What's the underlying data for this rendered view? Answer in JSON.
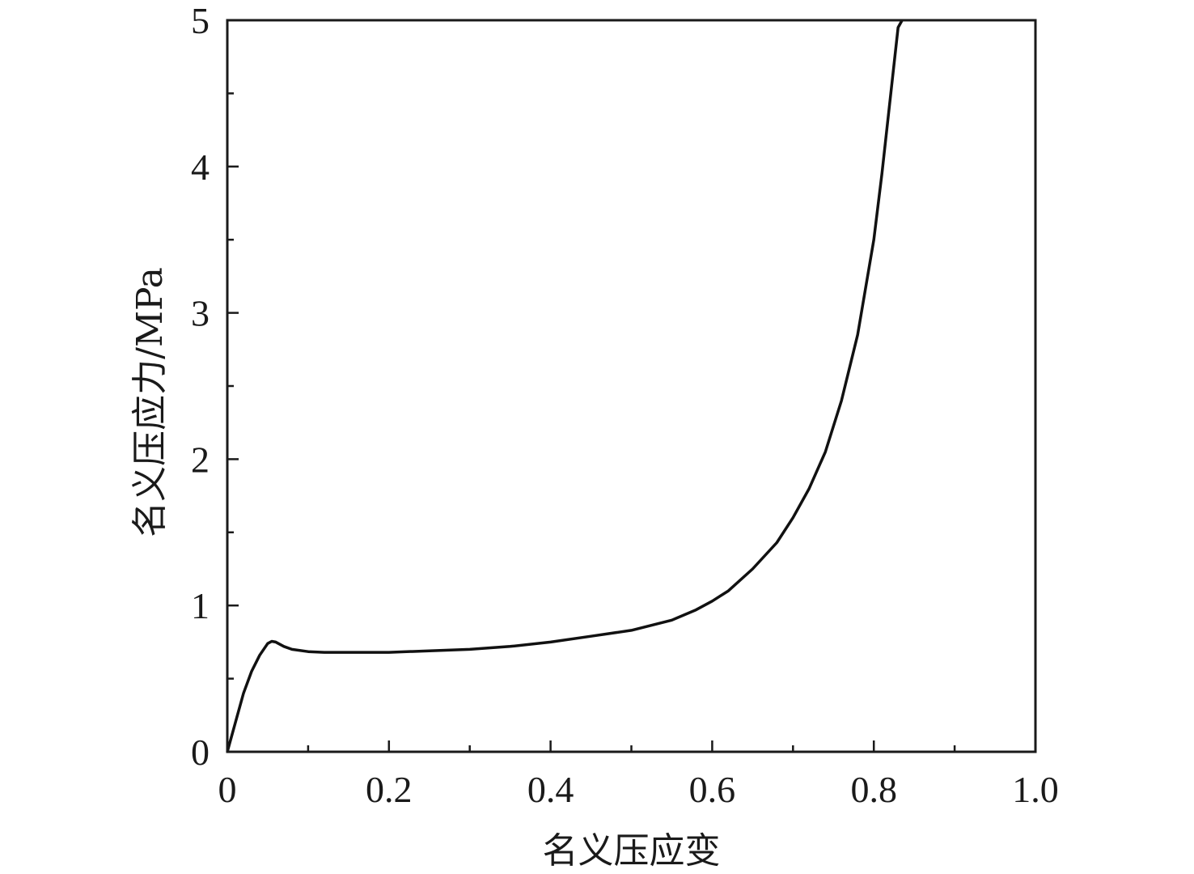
{
  "chart_data": {
    "type": "line",
    "title": "",
    "xlabel": "名义压应变",
    "ylabel": "名义压应力/MPa",
    "xlim": [
      0,
      1.0
    ],
    "ylim": [
      0,
      5
    ],
    "x_ticks": [
      {
        "value": 0,
        "label": "0"
      },
      {
        "value": 0.2,
        "label": "0.2"
      },
      {
        "value": 0.4,
        "label": "0.4"
      },
      {
        "value": 0.6,
        "label": "0.6"
      },
      {
        "value": 0.8,
        "label": "0.8"
      },
      {
        "value": 1.0,
        "label": "1.0"
      }
    ],
    "y_ticks": [
      {
        "value": 0,
        "label": "0"
      },
      {
        "value": 1,
        "label": "1"
      },
      {
        "value": 2,
        "label": "2"
      },
      {
        "value": 3,
        "label": "3"
      },
      {
        "value": 4,
        "label": "4"
      },
      {
        "value": 5,
        "label": "5"
      }
    ],
    "x_minor_ticks": [
      0.1,
      0.3,
      0.5,
      0.7,
      0.9
    ],
    "y_minor_ticks": [
      0.5,
      1.5,
      2.5,
      3.5,
      4.5
    ],
    "grid": false,
    "line_color": "#111111",
    "series": [
      {
        "x": [
          0,
          0.005,
          0.01,
          0.02,
          0.03,
          0.04,
          0.05,
          0.055,
          0.06,
          0.07,
          0.08,
          0.1,
          0.12,
          0.15,
          0.2,
          0.25,
          0.3,
          0.35,
          0.4,
          0.45,
          0.5,
          0.55,
          0.58,
          0.6,
          0.62,
          0.65,
          0.68,
          0.7,
          0.72,
          0.74,
          0.76,
          0.78,
          0.8,
          0.81,
          0.82,
          0.83,
          0.835
        ],
        "y": [
          0,
          0.1,
          0.2,
          0.4,
          0.55,
          0.66,
          0.74,
          0.755,
          0.75,
          0.72,
          0.7,
          0.685,
          0.68,
          0.68,
          0.68,
          0.69,
          0.7,
          0.72,
          0.75,
          0.79,
          0.83,
          0.9,
          0.97,
          1.03,
          1.1,
          1.25,
          1.43,
          1.6,
          1.8,
          2.05,
          2.4,
          2.85,
          3.5,
          3.95,
          4.45,
          4.95,
          5.0
        ]
      }
    ]
  }
}
